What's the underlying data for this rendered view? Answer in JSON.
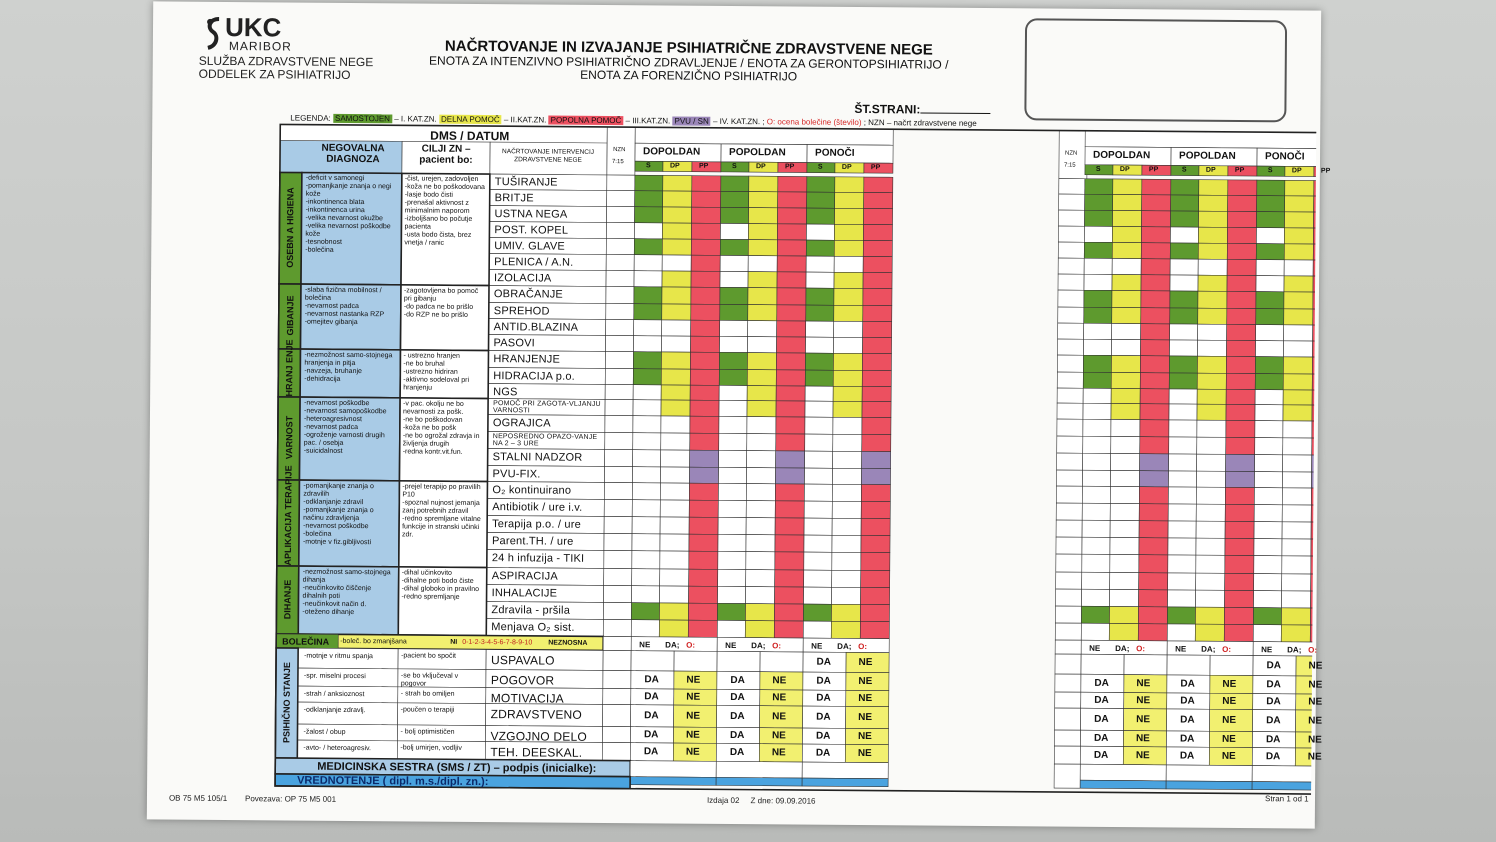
{
  "header": {
    "logo": "UKC",
    "logo_sub": "MARIBOR",
    "dept1": "SLUŽBA ZDRAVSTVENE NEGE",
    "dept2": "ODDELEK ZA PSIHIATRIJO",
    "title": "NAČRTOVANJE IN IZVAJANJE PSIHIATRIČNE ZDRAVSTVENE NEGE",
    "subtitle1": "ENOTA ZA INTENZIVNO PSIHIATRIČNO ZDRAVLJENJE / ENOTA ZA GERONTOPSIHIATRIJO /",
    "subtitle2": "ENOTA ZA FORENZIČNO PSIHIATRIJO",
    "page_label": "ŠT.STRANI:"
  },
  "legend": {
    "prefix": "LEGENDA:",
    "items": [
      {
        "tag": "SAMOSTOJEN",
        "text": " – I. KAT.ZN. ",
        "color": "#5e9a2e"
      },
      {
        "tag": "DELNA POMOČ",
        "text": " – II.KAT.ZN. ",
        "color": "#e7e64a"
      },
      {
        "tag": "POPOLNA POMOČ",
        "text": " – III.KAT.ZN. ",
        "color": "#ec5060"
      },
      {
        "tag": "PVU / SN",
        "text": " – IV. KAT.ZN. ; ",
        "color": "#9a86b8"
      }
    ],
    "pain_note": "O: ocena bolečine (število)",
    "nzn_note": " ; NZN – načrt zdravstvene nege"
  },
  "table": {
    "dms_label": "DMS / DATUM",
    "col_diag": "NEGOVALNA DIAGNOZA",
    "col_goals": "CILJI ZN – pacient bo:",
    "col_interv": "Načrtovanje intervencij zdravstvene nege",
    "nzn": "NZN",
    "nzn_time": "7:15",
    "shifts": [
      "DOPOLDAN",
      "POPOLDAN",
      "PONOČI",
      "DOPOLDAN",
      "POPOLDAN",
      "PONOČI"
    ],
    "sub": [
      "S",
      "DP",
      "PP"
    ],
    "sections": [
      {
        "label": "OSEBN A HIGIENA",
        "diagnoses": "-deficit v samonegi\n-pomanjkanje znanja o negi kože\n-inkontinenca blata\n-inkontinenca urina\n-velika nevarnost okužbe\n-velika nevarnost poškodbe kože\n-tesnobnost\n-bolečina",
        "goals": "-čist, urejen, zadovoljen\n-koža ne bo poškodovana\n-lasje bodo čisti\n-prenašal aktivnost z minimalnim naporom\n-izboljšano bo počutje pacienta\n-usta bodo čista, brez vnetja / ranic",
        "rows": [
          "TUŠIRANJE",
          "BRITJE",
          "USTNA NEGA",
          "POST. KOPEL",
          "UMIV. GLAVE",
          "PLENICA / A.N.",
          "IZOLACIJA"
        ]
      },
      {
        "label": "GIBANJE",
        "diagnoses": "-slaba fizična mobilnost / bolečina\n-nevarnost padca\n-nevarnost nastanka RZP\n-omejitev gibanja",
        "goals": "-zagotovljena bo pomoč pri gibanju\n-do padca ne bo prišlo\n-do RZP ne bo prišlo",
        "rows": [
          "OBRAČANJE",
          "SPREHOD",
          "ANTID.BLAZINA",
          "PASOVI"
        ]
      },
      {
        "label": "HRANJ ENJE",
        "diagnoses": "-nezmožnost samo-stojnega hranjenja in pitja\n-navzeja, bruhanje\n-dehidracija",
        "goals": "- ustrezno hranjen\n-ne bo bruhal\n-ustrezno hidriran\n-aktivno sodeloval pri hranjenju",
        "rows": [
          "HRANJENJE",
          "HIDRACIJA p.o.",
          "NGS"
        ]
      },
      {
        "label": "VARNOST",
        "diagnoses": "-nevarnost poškodbe\n-nevarnost samopoškodbe\n-heteroagresivnost\n-nevarnost padca\n-ogroženje varnosti drugih pac. / osebja\n-suicidalnost",
        "goals": "-v pac. okolju ne bo nevarnosti za pošk.\n-ne bo poškodovan\n-koža ne bo pošk\n-ne bo ogrožal zdravja in življenja drugih\n-redna kontr.vit.fun.",
        "rows": [
          "POMOČ PRI ZAGOTA-VLJANJU VARNOSTI",
          "OGRAJICA",
          "NEPOSREDNO OPAZO-VANJE NA 2 – 3 URE",
          "STALNI NADZOR",
          "PVU-FIX."
        ]
      },
      {
        "label": "APLIKACIJA TERAPIJE",
        "diagnoses": "-pomanjkanje znanja o zdravilih\n-odklanjanje zdravil\n-pomanjkanje znanja o načinu zdravljenja\n-nevarnost poškodbe\n-bolečina\n-motnje v fiz.gibljivosti",
        "goals": "-prejel terapijo po pravilih P10\n-spoznal nujnost jemanja zanj potrebnih zdravil\n-redno spremljane vitalne funkcije in stranski učinki zdr.",
        "rows": [
          "O₂ kontinuirano",
          "Antibiotik / ure i.v.",
          "Terapija p.o. / ure",
          "Parent.TH. / ure",
          "24 h infuzija - TIKI"
        ]
      },
      {
        "label": "DIHANJE",
        "diagnoses": "-nezmožnost samo-stojnega dihanja\n-neučinkovito čiščenje dihalnih poti\n-neučinkovit način d.\n-oteženo dihanje",
        "goals": "-dihal učinkovito\n-dihalne poti bodo čiste\n-dihal globoko in pravilno\n-redno spremljanje",
        "rows": [
          "ASPIRACIJA",
          "INHALACIJE",
          "Zdravila - pršila",
          "Menjava O₂ sist."
        ]
      }
    ],
    "pain": {
      "label": "BOLEČINA",
      "text": "-boleč. bo zmanjšana",
      "scale_ni": "NI",
      "scale": "0-1-2-3-4-5-6-7-8-9-10",
      "scale_end": "NEZNOSNA",
      "ne": "NE",
      "da": "DA;",
      "o": "O:"
    },
    "psych": {
      "label": "PSIHIČNO STANJE",
      "rows": [
        {
          "diag": "-motnje v ritmu spanja",
          "goal": "-pacient bo spočit",
          "action": "USPAVALO"
        },
        {
          "diag": "-spr. miselni procesi",
          "goal": "-se bo vključeval v pogovor",
          "action": "POGOVOR"
        },
        {
          "diag": "-strah / anksioznost",
          "goal": "- strah bo omiljen",
          "action": "MOTIVACIJA"
        },
        {
          "diag": "-odklanjanje zdravlj.",
          "goal": "-poučen o terapiji",
          "action": "ZDRAVSTVENO"
        },
        {
          "diag": "-žalost / obup",
          "goal": "- bolj optimističen",
          "action": "VZGOJNO DELO"
        },
        {
          "diag": "-avto- / heteroagresiv.",
          "goal": "-bolj umirjen, vodljiv",
          "action": "TEH. DEESKAL."
        }
      ],
      "da": "DA",
      "ne": "NE"
    },
    "sign_label": "MEDICINSKA SESTRA (SMS / ZT) – podpis (inicialke):",
    "eval_label": "VREDNOTENJE ( dipl. m.s./dipl. zn.):"
  },
  "footer": {
    "code": "OB 75 M5 105/1",
    "link": "Povezava: OP 75 M5 001",
    "edition": "Izdaja 02",
    "date": "Z dne: 09.09.2016",
    "page": "Stran 1 od 1"
  },
  "colors": {
    "green": "#5e9a2e",
    "yellow": "#e7e64a",
    "red": "#ec5060",
    "purple": "#9a86b8",
    "blue": "#a9cbe6",
    "sign_blue": "#4aa3df",
    "hdr_yellow": "#f2f070"
  }
}
